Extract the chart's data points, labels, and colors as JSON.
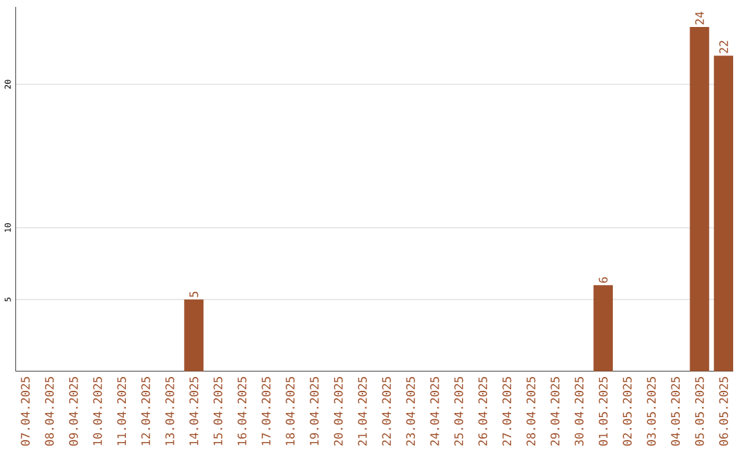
{
  "chart_data": {
    "type": "bar",
    "categories": [
      "07.04.2025",
      "08.04.2025",
      "09.04.2025",
      "10.04.2025",
      "11.04.2025",
      "12.04.2025",
      "13.04.2025",
      "14.04.2025",
      "15.04.2025",
      "16.04.2025",
      "17.04.2025",
      "18.04.2025",
      "19.04.2025",
      "20.04.2025",
      "21.04.2025",
      "22.04.2025",
      "23.04.2025",
      "24.04.2025",
      "25.04.2025",
      "26.04.2025",
      "27.04.2025",
      "28.04.2025",
      "29.04.2025",
      "30.04.2025",
      "01.05.2025",
      "02.05.2025",
      "03.05.2025",
      "04.05.2025",
      "05.05.2025",
      "06.05.2025"
    ],
    "values": [
      0,
      0,
      0,
      0,
      0,
      0,
      0,
      5,
      0,
      0,
      0,
      0,
      0,
      0,
      0,
      0,
      0,
      0,
      0,
      0,
      0,
      0,
      0,
      0,
      6,
      0,
      0,
      0,
      24,
      22
    ],
    "value_labels": [
      null,
      null,
      null,
      null,
      null,
      null,
      null,
      "5",
      null,
      null,
      null,
      null,
      null,
      null,
      null,
      null,
      null,
      null,
      null,
      null,
      null,
      null,
      null,
      null,
      "6",
      null,
      null,
      null,
      "24",
      "22"
    ],
    "color": "#a0522d",
    "ylim": [
      0,
      25.4
    ],
    "yticks": [
      5,
      10,
      20
    ],
    "grid": "y"
  }
}
